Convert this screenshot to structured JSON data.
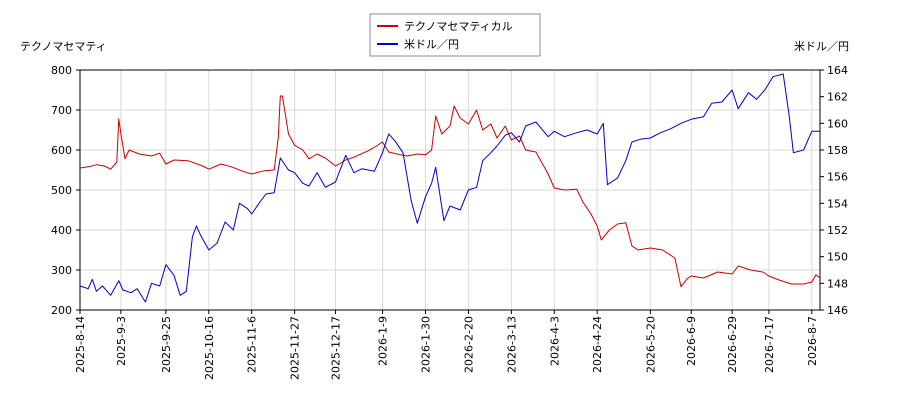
{
  "chart_data": {
    "type": "line",
    "left_axis_title": "テクノマセマティ",
    "right_axis_title": "米ドル／円",
    "legend_position": "top-center",
    "grid": true,
    "x_tick_labels": [
      "2025-8-14",
      "2025-9-3",
      "2025-9-25",
      "2025-10-16",
      "2025-11-6",
      "2025-11-27",
      "2025-12-17",
      "2026-1-9",
      "2026-1-30",
      "2026-2-20",
      "2026-3-13",
      "2026-4-3",
      "2026-4-24",
      "2026-5-20",
      "2026-6-9",
      "2026-6-29",
      "2026-7-17",
      "2026-8-7"
    ],
    "x_range": [
      "2025-8-14",
      "2026-8-11"
    ],
    "y_left": {
      "min": 200,
      "max": 800,
      "ticks": [
        200,
        300,
        400,
        500,
        600,
        700,
        800
      ]
    },
    "y_right": {
      "min": 146,
      "max": 164,
      "ticks": [
        146,
        148,
        150,
        152,
        154,
        156,
        158,
        160,
        162,
        164
      ]
    },
    "series": [
      {
        "name": "テクノマセマティカル",
        "color": "#cc0000",
        "axis": "left",
        "points": [
          [
            "2025-8-14",
            555
          ],
          [
            "2025-8-18",
            558
          ],
          [
            "2025-8-22",
            563
          ],
          [
            "2025-8-26",
            560
          ],
          [
            "2025-8-29",
            552
          ],
          [
            "2025-9-1",
            570
          ],
          [
            "2025-9-2",
            678
          ],
          [
            "2025-9-3",
            640
          ],
          [
            "2025-9-5",
            578
          ],
          [
            "2025-9-7",
            600
          ],
          [
            "2025-9-12",
            590
          ],
          [
            "2025-9-18",
            585
          ],
          [
            "2025-9-22",
            592
          ],
          [
            "2025-9-25",
            565
          ],
          [
            "2025-9-29",
            575
          ],
          [
            "2025-10-6",
            573
          ],
          [
            "2025-10-13",
            560
          ],
          [
            "2025-10-16",
            552
          ],
          [
            "2025-10-22",
            565
          ],
          [
            "2025-10-27",
            558
          ],
          [
            "2025-11-1",
            548
          ],
          [
            "2025-11-6",
            540
          ],
          [
            "2025-11-12",
            548
          ],
          [
            "2025-11-17",
            550
          ],
          [
            "2025-11-19",
            632
          ],
          [
            "2025-11-20",
            735
          ],
          [
            "2025-11-21",
            735
          ],
          [
            "2025-11-24",
            640
          ],
          [
            "2025-11-27",
            612
          ],
          [
            "2025-12-1",
            600
          ],
          [
            "2025-12-4",
            578
          ],
          [
            "2025-12-8",
            590
          ],
          [
            "2025-12-12",
            580
          ],
          [
            "2025-12-17",
            560
          ],
          [
            "2025-12-22",
            575
          ],
          [
            "2025-12-26",
            582
          ],
          [
            "2026-1-2",
            598
          ],
          [
            "2026-1-6",
            610
          ],
          [
            "2026-1-9",
            620
          ],
          [
            "2026-1-12",
            595
          ],
          [
            "2026-1-16",
            590
          ],
          [
            "2026-1-21",
            585
          ],
          [
            "2026-1-26",
            590
          ],
          [
            "2026-1-30",
            588
          ],
          [
            "2026-2-2",
            600
          ],
          [
            "2026-2-4",
            685
          ],
          [
            "2026-2-7",
            640
          ],
          [
            "2026-2-11",
            660
          ],
          [
            "2026-2-13",
            710
          ],
          [
            "2026-2-16",
            680
          ],
          [
            "2026-2-20",
            665
          ],
          [
            "2026-2-24",
            700
          ],
          [
            "2026-2-27",
            650
          ],
          [
            "2026-3-3",
            665
          ],
          [
            "2026-3-6",
            630
          ],
          [
            "2026-3-10",
            660
          ],
          [
            "2026-3-13",
            625
          ],
          [
            "2026-3-17",
            635
          ],
          [
            "2026-3-20",
            600
          ],
          [
            "2026-3-25",
            595
          ],
          [
            "2026-3-31",
            540
          ],
          [
            "2026-4-3",
            505
          ],
          [
            "2026-4-8",
            500
          ],
          [
            "2026-4-14",
            502
          ],
          [
            "2026-4-17",
            470
          ],
          [
            "2026-4-21",
            440
          ],
          [
            "2026-4-24",
            410
          ],
          [
            "2026-4-26",
            375
          ],
          [
            "2026-4-30",
            400
          ],
          [
            "2026-5-4",
            415
          ],
          [
            "2026-5-8",
            418
          ],
          [
            "2026-5-11",
            360
          ],
          [
            "2026-5-14",
            350
          ],
          [
            "2026-5-20",
            355
          ],
          [
            "2026-5-26",
            350
          ],
          [
            "2026-6-1",
            330
          ],
          [
            "2026-6-4",
            258
          ],
          [
            "2026-6-7",
            278
          ],
          [
            "2026-6-9",
            285
          ],
          [
            "2026-6-15",
            280
          ],
          [
            "2026-6-22",
            295
          ],
          [
            "2026-6-29",
            290
          ],
          [
            "2026-7-2",
            310
          ],
          [
            "2026-7-8",
            300
          ],
          [
            "2026-7-14",
            295
          ],
          [
            "2026-7-17",
            285
          ],
          [
            "2026-7-22",
            275
          ],
          [
            "2026-7-28",
            265
          ],
          [
            "2026-8-3",
            265
          ],
          [
            "2026-8-7",
            270
          ],
          [
            "2026-8-9",
            288
          ],
          [
            "2026-8-11",
            280
          ]
        ]
      },
      {
        "name": "米ドル／円",
        "color": "#0000cc",
        "axis": "right",
        "points": [
          [
            "2025-8-14",
            147.8
          ],
          [
            "2025-8-18",
            147.6
          ],
          [
            "2025-8-20",
            148.3
          ],
          [
            "2025-8-22",
            147.4
          ],
          [
            "2025-8-25",
            147.8
          ],
          [
            "2025-8-29",
            147.1
          ],
          [
            "2025-9-2",
            148.2
          ],
          [
            "2025-9-4",
            147.5
          ],
          [
            "2025-9-8",
            147.3
          ],
          [
            "2025-9-11",
            147.6
          ],
          [
            "2025-9-15",
            146.6
          ],
          [
            "2025-9-18",
            148.0
          ],
          [
            "2025-9-22",
            147.8
          ],
          [
            "2025-9-25",
            149.4
          ],
          [
            "2025-9-29",
            148.6
          ],
          [
            "2025-10-2",
            147.1
          ],
          [
            "2025-10-5",
            147.4
          ],
          [
            "2025-10-8",
            151.5
          ],
          [
            "2025-10-10",
            152.3
          ],
          [
            "2025-10-12",
            151.6
          ],
          [
            "2025-10-16",
            150.5
          ],
          [
            "2025-10-20",
            151.0
          ],
          [
            "2025-10-24",
            152.6
          ],
          [
            "2025-10-28",
            152.0
          ],
          [
            "2025-10-31",
            154.0
          ],
          [
            "2025-11-4",
            153.6
          ],
          [
            "2025-11-6",
            153.2
          ],
          [
            "2025-11-10",
            154.1
          ],
          [
            "2025-11-13",
            154.7
          ],
          [
            "2025-11-17",
            154.8
          ],
          [
            "2025-11-20",
            157.4
          ],
          [
            "2025-11-24",
            156.5
          ],
          [
            "2025-11-27",
            156.3
          ],
          [
            "2025-12-1",
            155.5
          ],
          [
            "2025-12-4",
            155.3
          ],
          [
            "2025-12-8",
            156.3
          ],
          [
            "2025-12-12",
            155.2
          ],
          [
            "2025-12-17",
            155.6
          ],
          [
            "2025-12-22",
            157.6
          ],
          [
            "2025-12-26",
            156.3
          ],
          [
            "2025-12-30",
            156.6
          ],
          [
            "2026-1-5",
            156.4
          ],
          [
            "2026-1-9",
            157.8
          ],
          [
            "2026-1-12",
            159.2
          ],
          [
            "2026-1-15",
            158.7
          ],
          [
            "2026-1-19",
            157.8
          ],
          [
            "2026-1-23",
            154.2
          ],
          [
            "2026-1-26",
            152.5
          ],
          [
            "2026-1-30",
            154.5
          ],
          [
            "2026-2-2",
            155.5
          ],
          [
            "2026-2-4",
            156.7
          ],
          [
            "2026-2-8",
            152.7
          ],
          [
            "2026-2-11",
            153.8
          ],
          [
            "2026-2-16",
            153.5
          ],
          [
            "2026-2-20",
            155.0
          ],
          [
            "2026-2-24",
            155.2
          ],
          [
            "2026-2-27",
            157.2
          ],
          [
            "2026-3-3",
            157.8
          ],
          [
            "2026-3-6",
            158.3
          ],
          [
            "2026-3-10",
            159.1
          ],
          [
            "2026-3-13",
            159.3
          ],
          [
            "2026-3-17",
            158.6
          ],
          [
            "2026-3-20",
            159.8
          ],
          [
            "2026-3-25",
            160.1
          ],
          [
            "2026-3-31",
            159.0
          ],
          [
            "2026-4-3",
            159.4
          ],
          [
            "2026-4-8",
            159.0
          ],
          [
            "2026-4-14",
            159.3
          ],
          [
            "2026-4-19",
            159.5
          ],
          [
            "2026-4-24",
            159.2
          ],
          [
            "2026-4-27",
            160.0
          ],
          [
            "2026-4-29",
            155.4
          ],
          [
            "2026-5-4",
            155.9
          ],
          [
            "2026-5-8",
            157.2
          ],
          [
            "2026-5-11",
            158.6
          ],
          [
            "2026-5-15",
            158.8
          ],
          [
            "2026-5-20",
            158.9
          ],
          [
            "2026-5-25",
            159.3
          ],
          [
            "2026-5-30",
            159.6
          ],
          [
            "2026-6-4",
            160.0
          ],
          [
            "2026-6-9",
            160.3
          ],
          [
            "2026-6-15",
            160.5
          ],
          [
            "2026-6-19",
            161.5
          ],
          [
            "2026-6-24",
            161.6
          ],
          [
            "2026-6-29",
            162.5
          ],
          [
            "2026-7-2",
            161.1
          ],
          [
            "2026-7-7",
            162.3
          ],
          [
            "2026-7-11",
            161.8
          ],
          [
            "2026-7-15",
            162.5
          ],
          [
            "2026-7-19",
            163.5
          ],
          [
            "2026-7-24",
            163.7
          ],
          [
            "2026-7-27",
            160.5
          ],
          [
            "2026-7-29",
            157.8
          ],
          [
            "2026-8-3",
            158.0
          ],
          [
            "2026-8-7",
            159.4
          ],
          [
            "2026-8-11",
            159.4
          ]
        ]
      }
    ]
  }
}
